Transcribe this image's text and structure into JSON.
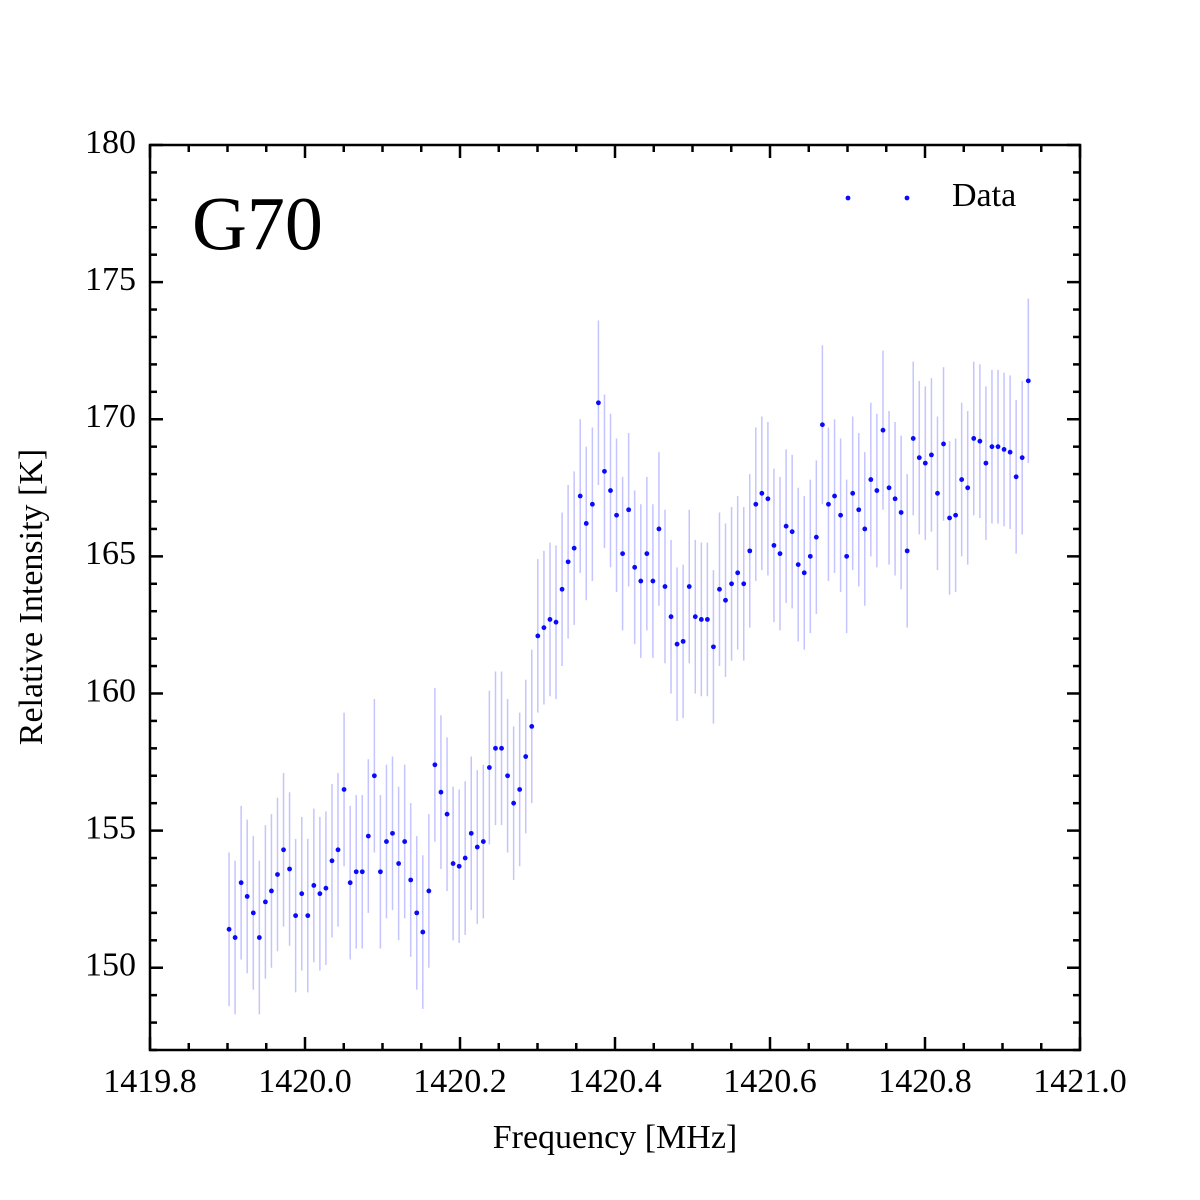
{
  "chart_data": {
    "type": "scatter",
    "annotation": "G70",
    "xlabel": "Frequency [MHz]",
    "ylabel": "Relative Intensity [K]",
    "xlim": [
      1419.8,
      1421.0
    ],
    "ylim": [
      147,
      180
    ],
    "xticks": [
      1419.8,
      {
        "value": 1420,
        "label": "1420.0"
      },
      1420.2,
      1420.4,
      1420.6,
      1420.8,
      {
        "value": 1421,
        "label": "1421.0"
      }
    ],
    "yticks": [
      150,
      155,
      160,
      165,
      170,
      175,
      180
    ],
    "xminorticks": [
      1419.85,
      1419.9,
      1419.95,
      1420.05,
      1420.1,
      1420.15,
      1420.25,
      1420.3,
      1420.35,
      1420.45,
      1420.5,
      1420.55,
      1420.65,
      1420.7,
      1420.75,
      1420.85,
      1420.9,
      1420.95
    ],
    "yminorticks": [
      147,
      148,
      149,
      151,
      152,
      153,
      154,
      156,
      157,
      158,
      159,
      161,
      162,
      163,
      164,
      166,
      167,
      168,
      169,
      171,
      172,
      173,
      174,
      176,
      177,
      178,
      179
    ],
    "legend": "upper right",
    "series": [
      {
        "name": "Data",
        "color": "#0a0aff",
        "error_color": "#c4c4ff",
        "x": [
          1419.902,
          1419.9098,
          1419.9176,
          1419.9254,
          1419.9333,
          1419.9411,
          1419.9489,
          1419.9567,
          1419.9645,
          1419.9723,
          1419.9801,
          1419.9879,
          1419.9958,
          1420.0036,
          1420.0114,
          1420.0192,
          1420.027,
          1420.0348,
          1420.0426,
          1420.0504,
          1420.0583,
          1420.0661,
          1420.0739,
          1420.0817,
          1420.0895,
          1420.0973,
          1420.1051,
          1420.1129,
          1420.1208,
          1420.1286,
          1420.1364,
          1420.1442,
          1420.152,
          1420.1598,
          1420.1676,
          1420.1754,
          1420.1833,
          1420.1911,
          1420.1989,
          1420.2067,
          1420.2145,
          1420.2223,
          1420.2301,
          1420.2379,
          1420.2458,
          1420.2536,
          1420.2614,
          1420.2692,
          1420.277,
          1420.2848,
          1420.2926,
          1420.3004,
          1420.3083,
          1420.3161,
          1420.3239,
          1420.3317,
          1420.3395,
          1420.3473,
          1420.3551,
          1420.3629,
          1420.3708,
          1420.3786,
          1420.3864,
          1420.3942,
          1420.402,
          1420.4098,
          1420.4176,
          1420.4254,
          1420.4333,
          1420.4411,
          1420.4489,
          1420.4567,
          1420.4645,
          1420.4723,
          1420.4801,
          1420.4879,
          1420.4958,
          1420.5036,
          1420.5114,
          1420.5192,
          1420.527,
          1420.5348,
          1420.5426,
          1420.5504,
          1420.5583,
          1420.5661,
          1420.5739,
          1420.5817,
          1420.5895,
          1420.5973,
          1420.6051,
          1420.6129,
          1420.6208,
          1420.6286,
          1420.6364,
          1420.6442,
          1420.652,
          1420.6598,
          1420.6676,
          1420.6754,
          1420.6833,
          1420.6911,
          1420.6989,
          1420.7067,
          1420.7145,
          1420.7223,
          1420.7301,
          1420.7379,
          1420.7458,
          1420.7536,
          1420.7614,
          1420.7692,
          1420.777,
          1420.7848,
          1420.7926,
          1420.8004,
          1420.8083,
          1420.8161,
          1420.8239,
          1420.8317,
          1420.8395,
          1420.8473,
          1420.8551,
          1420.8629,
          1420.8708,
          1420.8786,
          1420.8864,
          1420.8942,
          1420.902,
          1420.9098,
          1420.9176,
          1420.9254,
          1420.9333
        ],
        "values": [
          151.4,
          151.1,
          153.1,
          152.6,
          152.0,
          151.1,
          152.4,
          152.8,
          153.4,
          154.3,
          153.6,
          151.9,
          152.7,
          151.9,
          153.0,
          152.7,
          152.9,
          153.9,
          154.3,
          156.5,
          153.1,
          153.5,
          153.5,
          154.8,
          157.0,
          153.5,
          154.6,
          154.9,
          153.8,
          154.6,
          153.2,
          152.0,
          151.3,
          152.8,
          157.4,
          156.4,
          155.6,
          153.8,
          153.7,
          154.0,
          154.9,
          154.4,
          154.6,
          157.3,
          158.0,
          158.0,
          157.0,
          156.0,
          156.5,
          157.7,
          158.8,
          162.1,
          162.4,
          162.7,
          162.6,
          163.8,
          164.8,
          165.3,
          167.2,
          166.2,
          166.9,
          170.6,
          168.1,
          167.4,
          166.5,
          165.1,
          166.7,
          164.6,
          164.1,
          165.1,
          164.1,
          166.0,
          163.9,
          162.8,
          161.8,
          161.9,
          163.9,
          162.8,
          162.7,
          162.7,
          161.7,
          163.8,
          163.4,
          164.0,
          164.4,
          164.0,
          165.2,
          166.9,
          167.3,
          167.1,
          165.4,
          165.1,
          166.1,
          165.9,
          164.7,
          164.4,
          165.0,
          165.7,
          169.8,
          166.9,
          167.2,
          166.5,
          165.0,
          167.3,
          166.7,
          166.0,
          167.8,
          167.4,
          169.6,
          167.5,
          167.1,
          166.6,
          165.2,
          169.3,
          168.6,
          168.4,
          168.7,
          167.3,
          169.1,
          166.4,
          166.5,
          167.8,
          167.5,
          169.3,
          169.2,
          168.4,
          169.0,
          169.0,
          168.9,
          168.8,
          167.9,
          168.6,
          171.4
        ],
        "errors": [
          2.8,
          2.8,
          2.8,
          2.8,
          2.8,
          2.8,
          2.8,
          2.8,
          2.8,
          2.8,
          2.8,
          2.8,
          2.8,
          2.8,
          2.8,
          2.8,
          2.8,
          2.8,
          2.8,
          2.8,
          2.8,
          2.8,
          2.8,
          2.8,
          2.8,
          2.8,
          2.8,
          2.8,
          2.8,
          2.8,
          2.8,
          2.8,
          2.8,
          2.8,
          2.8,
          2.8,
          2.8,
          2.8,
          2.8,
          2.8,
          2.8,
          2.8,
          2.8,
          2.8,
          2.8,
          2.8,
          2.8,
          2.8,
          2.8,
          2.8,
          2.8,
          2.8,
          2.8,
          2.8,
          2.8,
          2.8,
          2.8,
          2.8,
          2.8,
          2.8,
          2.8,
          3.0,
          2.8,
          2.8,
          2.8,
          2.8,
          2.8,
          2.8,
          2.8,
          2.8,
          2.8,
          2.8,
          2.8,
          2.8,
          2.8,
          2.8,
          2.8,
          2.8,
          2.8,
          2.8,
          2.8,
          2.8,
          2.8,
          2.8,
          2.8,
          2.8,
          2.8,
          2.8,
          2.8,
          2.8,
          2.8,
          2.8,
          2.8,
          2.8,
          2.8,
          2.8,
          2.8,
          2.8,
          2.9,
          2.8,
          2.8,
          2.8,
          2.8,
          2.8,
          2.8,
          2.8,
          2.8,
          2.8,
          2.9,
          2.8,
          2.8,
          2.8,
          2.8,
          2.8,
          2.8,
          2.8,
          2.8,
          2.8,
          2.8,
          2.8,
          2.8,
          2.8,
          2.8,
          2.8,
          2.8,
          2.8,
          2.8,
          2.8,
          2.8,
          2.8,
          2.8,
          2.8,
          3.0
        ]
      }
    ]
  }
}
